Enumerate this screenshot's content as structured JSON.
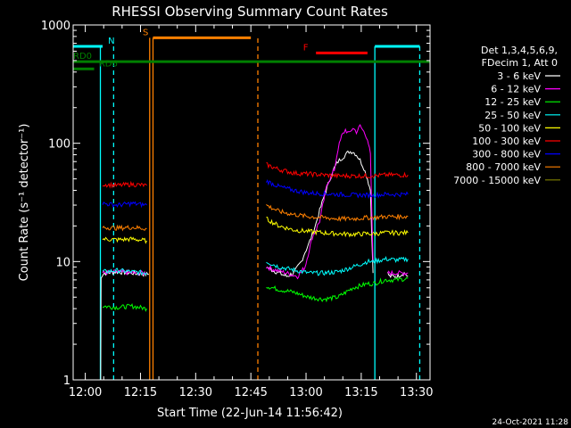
{
  "chart_data": {
    "type": "line",
    "title": "RHESSI Observing Summary Count Rates",
    "ylabel": "Count Rate (s⁻¹ detector⁻¹)",
    "xlabel": "Start Time (22-Jun-14 11:56:42)",
    "y_scale": "log",
    "ylim": [
      1,
      1000
    ],
    "y_ticks": [
      {
        "value": 1,
        "label": "1"
      },
      {
        "value": 10,
        "label": "10"
      },
      {
        "value": 100,
        "label": "100"
      },
      {
        "value": 1000,
        "label": "1000"
      }
    ],
    "x_unit": "minutes after 11:56:42",
    "xlim": [
      0,
      97
    ],
    "x_ticks": [
      {
        "value": 3.3,
        "label": "12:00"
      },
      {
        "value": 18.3,
        "label": "12:15"
      },
      {
        "value": 33.3,
        "label": "12:30"
      },
      {
        "value": 48.3,
        "label": "12:45"
      },
      {
        "value": 63.3,
        "label": "13:00"
      },
      {
        "value": 78.3,
        "label": "13:15"
      },
      {
        "value": 93.3,
        "label": "13:30"
      }
    ],
    "legend_header": [
      "Det 1,3,4,5,6,9,",
      "FDecim 1, Att 0"
    ],
    "grid": false,
    "legend_position": "right",
    "series": [
      {
        "name": "3 - 6 keV",
        "color": "#ffffff",
        "segments": [
          {
            "x": [
              7.5,
              7.6,
              8.5,
              12,
              16,
              20,
              20.6
            ],
            "y": [
              1.0,
              7.5,
              8.0,
              8.2,
              8.0,
              7.8,
              7.8
            ]
          },
          {
            "x": [
              52.5,
              54,
              56,
              58,
              60,
              62,
              63,
              64,
              65,
              66,
              67,
              68,
              69,
              70,
              71,
              72,
              73,
              74,
              75,
              76,
              77,
              78,
              79,
              80,
              80.8,
              81.5
            ],
            "y": [
              9,
              8.5,
              8,
              7.5,
              8,
              10,
              12,
              14,
              17,
              21,
              27,
              34,
              42,
              52,
              62,
              70,
              75,
              80,
              85,
              85,
              80,
              72,
              62,
              50,
              40,
              8
            ]
          },
          {
            "x": [
              85.5,
              86,
              88,
              90,
              91
            ],
            "y": [
              8,
              7.5,
              7.5,
              8,
              7.5
            ]
          }
        ]
      },
      {
        "name": "6 - 12 keV",
        "color": "#ff00ff",
        "segments": [
          {
            "x": [
              8.0,
              12,
              16,
              20
            ],
            "y": [
              8,
              8.2,
              8,
              8
            ]
          },
          {
            "x": [
              52.5,
              55,
              58,
              61,
              63,
              65,
              67,
              69,
              71,
              72,
              73,
              74,
              75,
              76,
              77,
              78,
              79,
              80,
              80.8,
              81.5
            ],
            "y": [
              9,
              8.5,
              8,
              7.5,
              9,
              16,
              22,
              45,
              60,
              90,
              115,
              130,
              120,
              135,
              125,
              140,
              125,
              110,
              80,
              10
            ]
          },
          {
            "x": [
              85.5,
              88,
              91
            ],
            "y": [
              8,
              8,
              8
            ]
          }
        ]
      },
      {
        "name": "12 - 25 keV",
        "color": "#00ff00",
        "segments": [
          {
            "x": [
              8.0,
              12,
              16,
              20
            ],
            "y": [
              4.2,
              4.1,
              4.2,
              4.0
            ]
          },
          {
            "x": [
              52.5,
              56,
              60,
              64,
              68,
              72,
              76,
              80,
              81.5
            ],
            "y": [
              6.2,
              5.8,
              5.5,
              5.0,
              4.8,
              5.0,
              6.0,
              6.5,
              6.5
            ]
          },
          {
            "x": [
              81.5,
              85,
              88,
              91
            ],
            "y": [
              6.5,
              7.0,
              7.0,
              7.2
            ]
          }
        ]
      },
      {
        "name": "25 - 50 keV",
        "color": "#00ffff",
        "segments": [
          {
            "x": [
              8.0,
              12,
              16,
              20
            ],
            "y": [
              8.2,
              8.4,
              8.2,
              8.0
            ]
          },
          {
            "x": [
              52.5,
              56,
              60,
              64,
              68,
              72,
              76,
              80,
              81.5
            ],
            "y": [
              10,
              9,
              8.5,
              8.0,
              8.0,
              8.2,
              9.0,
              10,
              10
            ]
          },
          {
            "x": [
              81.5,
              85,
              88,
              91
            ],
            "y": [
              10,
              10.5,
              10.3,
              10.5
            ]
          }
        ]
      },
      {
        "name": "50 - 100 keV",
        "color": "#ffff00",
        "segments": [
          {
            "x": [
              8.0,
              12,
              16,
              20
            ],
            "y": [
              15.5,
              15.3,
              15.5,
              15.0
            ]
          },
          {
            "x": [
              52.5,
              56,
              60,
              64,
              68,
              72,
              76,
              80,
              81.5
            ],
            "y": [
              23,
              20,
              18.5,
              18,
              17.5,
              17.2,
              17.0,
              17.2,
              17.2
            ]
          },
          {
            "x": [
              81.5,
              85,
              88,
              91
            ],
            "y": [
              17.2,
              17.5,
              17.5,
              17.5
            ]
          }
        ]
      },
      {
        "name": "100 - 300 keV",
        "color": "#ff0000",
        "segments": [
          {
            "x": [
              8.0,
              12,
              16,
              20
            ],
            "y": [
              45,
              44,
              45,
              44
            ]
          },
          {
            "x": [
              52.5,
              56,
              60,
              64,
              68,
              72,
              76,
              80,
              81.5
            ],
            "y": [
              66,
              60,
              56,
              55,
              54,
              53,
              53,
              53,
              53
            ]
          },
          {
            "x": [
              81.5,
              85,
              88,
              91
            ],
            "y": [
              53,
              54,
              54,
              54
            ]
          }
        ]
      },
      {
        "name": "300 - 800 keV",
        "color": "#0000ff",
        "segments": [
          {
            "x": [
              8.0,
              12,
              16,
              20
            ],
            "y": [
              31,
              30,
              31,
              30
            ]
          },
          {
            "x": [
              52.5,
              56,
              60,
              64,
              68,
              72,
              76,
              80,
              81.5
            ],
            "y": [
              48,
              43,
              40,
              38,
              37.5,
              37,
              36.5,
              36.5,
              36.5
            ]
          },
          {
            "x": [
              81.5,
              85,
              88,
              91
            ],
            "y": [
              36.5,
              37,
              37,
              37
            ]
          }
        ]
      },
      {
        "name": "800 - 7000 keV",
        "color": "#ff8000",
        "segments": [
          {
            "x": [
              8.0,
              12,
              16,
              20
            ],
            "y": [
              19.5,
              19.2,
              19.5,
              19.0
            ]
          },
          {
            "x": [
              52.5,
              56,
              60,
              64,
              68,
              72,
              76,
              80,
              81.5
            ],
            "y": [
              30,
              26.5,
              25,
              24,
              23.5,
              23,
              23,
              23.5,
              23.5
            ]
          },
          {
            "x": [
              81.5,
              85,
              88,
              91
            ],
            "y": [
              23.5,
              24,
              24,
              24
            ]
          }
        ]
      },
      {
        "name": "7000 - 15000 keV",
        "color": "#808000",
        "segments": []
      }
    ],
    "event_bars": [
      {
        "label": "N",
        "color": "#00ffff",
        "y": 660,
        "x": [
          0,
          8
        ],
        "label_x": 9.5
      },
      {
        "label": "N",
        "color": "#00ffff",
        "y": 660,
        "x": [
          82,
          94.2
        ],
        "label_x": null
      },
      {
        "label": "S",
        "color": "#ff8000",
        "y": 780,
        "x": [
          21.7,
          48.3
        ],
        "label_x": 18.9
      },
      {
        "label": "F",
        "color": "#ff0000",
        "y": 580,
        "x": [
          66,
          80
        ],
        "label_x": 62.5
      },
      {
        "label": "RD0",
        "color": "#008000",
        "y": 490,
        "x": [
          0,
          97
        ],
        "label_x": 0
      },
      {
        "label": "RD6",
        "color": "#008000",
        "y": 425,
        "x": [
          0,
          5.7
        ],
        "label_x": 7.0
      }
    ],
    "vertical_markers": [
      {
        "x": 7.4,
        "color": "#00ffff",
        "style": "solid",
        "y": [
          1,
          660
        ]
      },
      {
        "x": 11.0,
        "color": "#00ffff",
        "style": "dashed",
        "y": [
          1,
          660
        ]
      },
      {
        "x": 20.8,
        "color": "#ff8000",
        "style": "solid",
        "y": [
          1,
          780
        ]
      },
      {
        "x": 21.7,
        "color": "#ff8000",
        "style": "solid",
        "y": [
          1,
          780
        ]
      },
      {
        "x": 50.2,
        "color": "#ff8000",
        "style": "dashed",
        "y": [
          1,
          780
        ]
      },
      {
        "x": 82.0,
        "color": "#00ffff",
        "style": "solid",
        "y": [
          1,
          660
        ]
      },
      {
        "x": 94.2,
        "color": "#00ffff",
        "style": "dashed",
        "y": [
          1,
          660
        ]
      }
    ]
  },
  "timestamp": "24-Oct-2021 11:28"
}
